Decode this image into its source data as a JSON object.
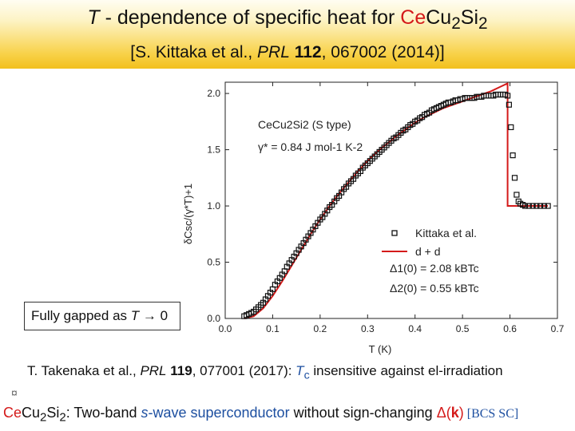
{
  "header": {
    "title_var": "T",
    "title_mid": " - dependence of specific heat for ",
    "title_compound_red": "Ce",
    "title_compound_rest": "Cu",
    "title_sub1": "2",
    "title_si": "Si",
    "title_sub2": "2",
    "citation_pre": "[S. Kittaka et al., ",
    "citation_journal": "PRL",
    "citation_vol": "112",
    "citation_post": ", 067002 (2014)]"
  },
  "chart_data": {
    "type": "scatter",
    "xlabel": "T (K)",
    "ylabel": "δCsc/(γ*T)+1",
    "xlim": [
      0.0,
      0.7
    ],
    "ylim": [
      0.0,
      2.1
    ],
    "x_ticks": [
      "0.0",
      "0.1",
      "0.2",
      "0.3",
      "0.4",
      "0.5",
      "0.6",
      "0.7"
    ],
    "y_ticks": [
      "0.0",
      "0.5",
      "1.0",
      "1.5",
      "2.0"
    ],
    "annotation": {
      "line1": "CeCu2Si2 (S type)",
      "line2": "γ* = 0.84 J mol-1 K-2"
    },
    "legend": {
      "position": "lower-right",
      "entries": [
        "Kittaka et al.",
        "d + d",
        "Δ1(0) = 2.08 kBTc",
        "Δ2(0) = 0.55 kBTc"
      ]
    },
    "series": [
      {
        "name": "Kittaka et al.",
        "style": "open-square",
        "x": [
          0.04,
          0.045,
          0.05,
          0.055,
          0.06,
          0.065,
          0.07,
          0.075,
          0.08,
          0.085,
          0.09,
          0.095,
          0.1,
          0.105,
          0.11,
          0.115,
          0.12,
          0.125,
          0.13,
          0.135,
          0.14,
          0.145,
          0.15,
          0.155,
          0.16,
          0.165,
          0.17,
          0.175,
          0.18,
          0.185,
          0.19,
          0.195,
          0.2,
          0.205,
          0.21,
          0.215,
          0.22,
          0.225,
          0.23,
          0.235,
          0.24,
          0.245,
          0.25,
          0.255,
          0.26,
          0.265,
          0.27,
          0.275,
          0.28,
          0.285,
          0.29,
          0.295,
          0.3,
          0.305,
          0.31,
          0.315,
          0.32,
          0.325,
          0.33,
          0.335,
          0.34,
          0.345,
          0.35,
          0.355,
          0.36,
          0.365,
          0.37,
          0.375,
          0.38,
          0.385,
          0.39,
          0.395,
          0.4,
          0.405,
          0.41,
          0.415,
          0.42,
          0.425,
          0.43,
          0.435,
          0.44,
          0.445,
          0.45,
          0.455,
          0.46,
          0.465,
          0.47,
          0.475,
          0.48,
          0.485,
          0.49,
          0.495,
          0.5,
          0.505,
          0.51,
          0.515,
          0.52,
          0.525,
          0.53,
          0.535,
          0.54,
          0.545,
          0.55,
          0.555,
          0.56,
          0.565,
          0.57,
          0.575,
          0.58,
          0.585,
          0.59,
          0.595,
          0.598,
          0.602,
          0.606,
          0.61,
          0.614,
          0.618,
          0.622,
          0.627,
          0.632,
          0.64,
          0.648,
          0.656,
          0.664,
          0.672,
          0.68
        ],
        "y": [
          0.02,
          0.03,
          0.04,
          0.05,
          0.06,
          0.08,
          0.1,
          0.12,
          0.14,
          0.17,
          0.2,
          0.23,
          0.26,
          0.3,
          0.33,
          0.36,
          0.39,
          0.42,
          0.46,
          0.49,
          0.52,
          0.55,
          0.58,
          0.61,
          0.64,
          0.67,
          0.7,
          0.73,
          0.76,
          0.79,
          0.82,
          0.85,
          0.88,
          0.9,
          0.93,
          0.96,
          0.99,
          1.01,
          1.04,
          1.07,
          1.09,
          1.12,
          1.15,
          1.17,
          1.2,
          1.22,
          1.24,
          1.27,
          1.29,
          1.31,
          1.34,
          1.36,
          1.38,
          1.4,
          1.42,
          1.44,
          1.46,
          1.48,
          1.5,
          1.52,
          1.54,
          1.56,
          1.58,
          1.6,
          1.61,
          1.63,
          1.65,
          1.67,
          1.68,
          1.7,
          1.72,
          1.73,
          1.75,
          1.76,
          1.78,
          1.79,
          1.81,
          1.82,
          1.83,
          1.85,
          1.86,
          1.87,
          1.88,
          1.89,
          1.9,
          1.91,
          1.92,
          1.92,
          1.93,
          1.94,
          1.94,
          1.95,
          1.95,
          1.96,
          1.96,
          1.96,
          1.96,
          1.96,
          1.97,
          1.97,
          1.97,
          1.98,
          1.98,
          1.98,
          1.98,
          1.98,
          1.99,
          1.99,
          1.99,
          1.99,
          1.99,
          1.98,
          1.9,
          1.7,
          1.45,
          1.25,
          1.1,
          1.04,
          1.02,
          1.01,
          1.0,
          1.0,
          1.0,
          1.0,
          1.0,
          1.0,
          1.0
        ]
      },
      {
        "name": "d + d",
        "style": "red-line",
        "x": [
          0.04,
          0.06,
          0.08,
          0.1,
          0.12,
          0.14,
          0.16,
          0.18,
          0.2,
          0.22,
          0.24,
          0.26,
          0.28,
          0.3,
          0.32,
          0.34,
          0.36,
          0.38,
          0.4,
          0.42,
          0.44,
          0.46,
          0.48,
          0.5,
          0.52,
          0.54,
          0.56,
          0.58,
          0.595,
          0.595,
          0.605,
          0.62,
          0.64,
          0.66,
          0.68
        ],
        "y": [
          0.0,
          0.02,
          0.09,
          0.2,
          0.33,
          0.47,
          0.61,
          0.75,
          0.88,
          1.0,
          1.11,
          1.21,
          1.31,
          1.4,
          1.48,
          1.55,
          1.62,
          1.68,
          1.74,
          1.79,
          1.83,
          1.87,
          1.9,
          1.93,
          1.96,
          1.99,
          2.02,
          2.06,
          2.09,
          1.0,
          1.0,
          1.0,
          1.0,
          1.0,
          1.0
        ]
      }
    ]
  },
  "labels": {
    "fully_gapped_prefix": "Fully gapped as ",
    "fully_gapped_var": "T",
    "fully_gapped_suffix": " → 0",
    "ref2_pre": "T. Takenaka et al., ",
    "ref2_journal": "PRL",
    "ref2_vol": "119",
    "ref2_post": ", 077001 (2017): ",
    "ref2_tc": "T",
    "ref2_tc_sub": "c",
    "ref2_tail": " insensitive against el-irradiation",
    "bullet": "¤",
    "concl_ce": "Ce",
    "concl_cu": "Cu",
    "concl_sub1": "2",
    "concl_si": "Si",
    "concl_sub2": "2",
    "concl_mid": ": Two-band ",
    "concl_s": "s",
    "concl_wave": "-wave superconductor",
    "concl_without": " without sign-changing ",
    "concl_delta": "Δ(",
    "concl_k": "k",
    "concl_close": ")",
    "concl_bcs": " [BCS SC]"
  },
  "colors": {
    "model_line": "#d41a1a",
    "data_marker": "#111111",
    "accent_blue": "#1d4fa0",
    "accent_red": "#d41a1a"
  }
}
